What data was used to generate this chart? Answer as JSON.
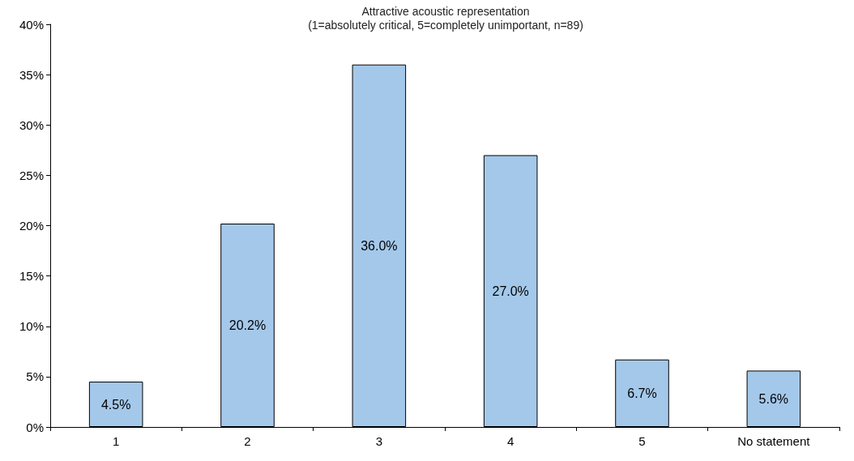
{
  "chart_data": {
    "type": "bar",
    "title": "Attractive acoustic representation",
    "subtitle": "(1=absolutely critical, 5=completely unimportant, n=89)",
    "categories": [
      "1",
      "2",
      "3",
      "4",
      "5",
      "No statement"
    ],
    "values": [
      4.5,
      20.2,
      36.0,
      27.0,
      6.7,
      5.6
    ],
    "value_labels": [
      "4.5%",
      "20.2%",
      "36.0%",
      "27.0%",
      "6.7%",
      "5.6%"
    ],
    "color": "#a4c8ea",
    "ylim": [
      0,
      40
    ],
    "yticks": [
      {
        "value": 0,
        "label": "0%"
      },
      {
        "value": 5,
        "label": "5%"
      },
      {
        "value": 10,
        "label": "10%"
      },
      {
        "value": 15,
        "label": "15%"
      },
      {
        "value": 20,
        "label": "20%"
      },
      {
        "value": 25,
        "label": "25%"
      },
      {
        "value": 30,
        "label": "30%"
      },
      {
        "value": 35,
        "label": "35%"
      },
      {
        "value": 40,
        "label": "40%"
      }
    ],
    "grid": false
  }
}
